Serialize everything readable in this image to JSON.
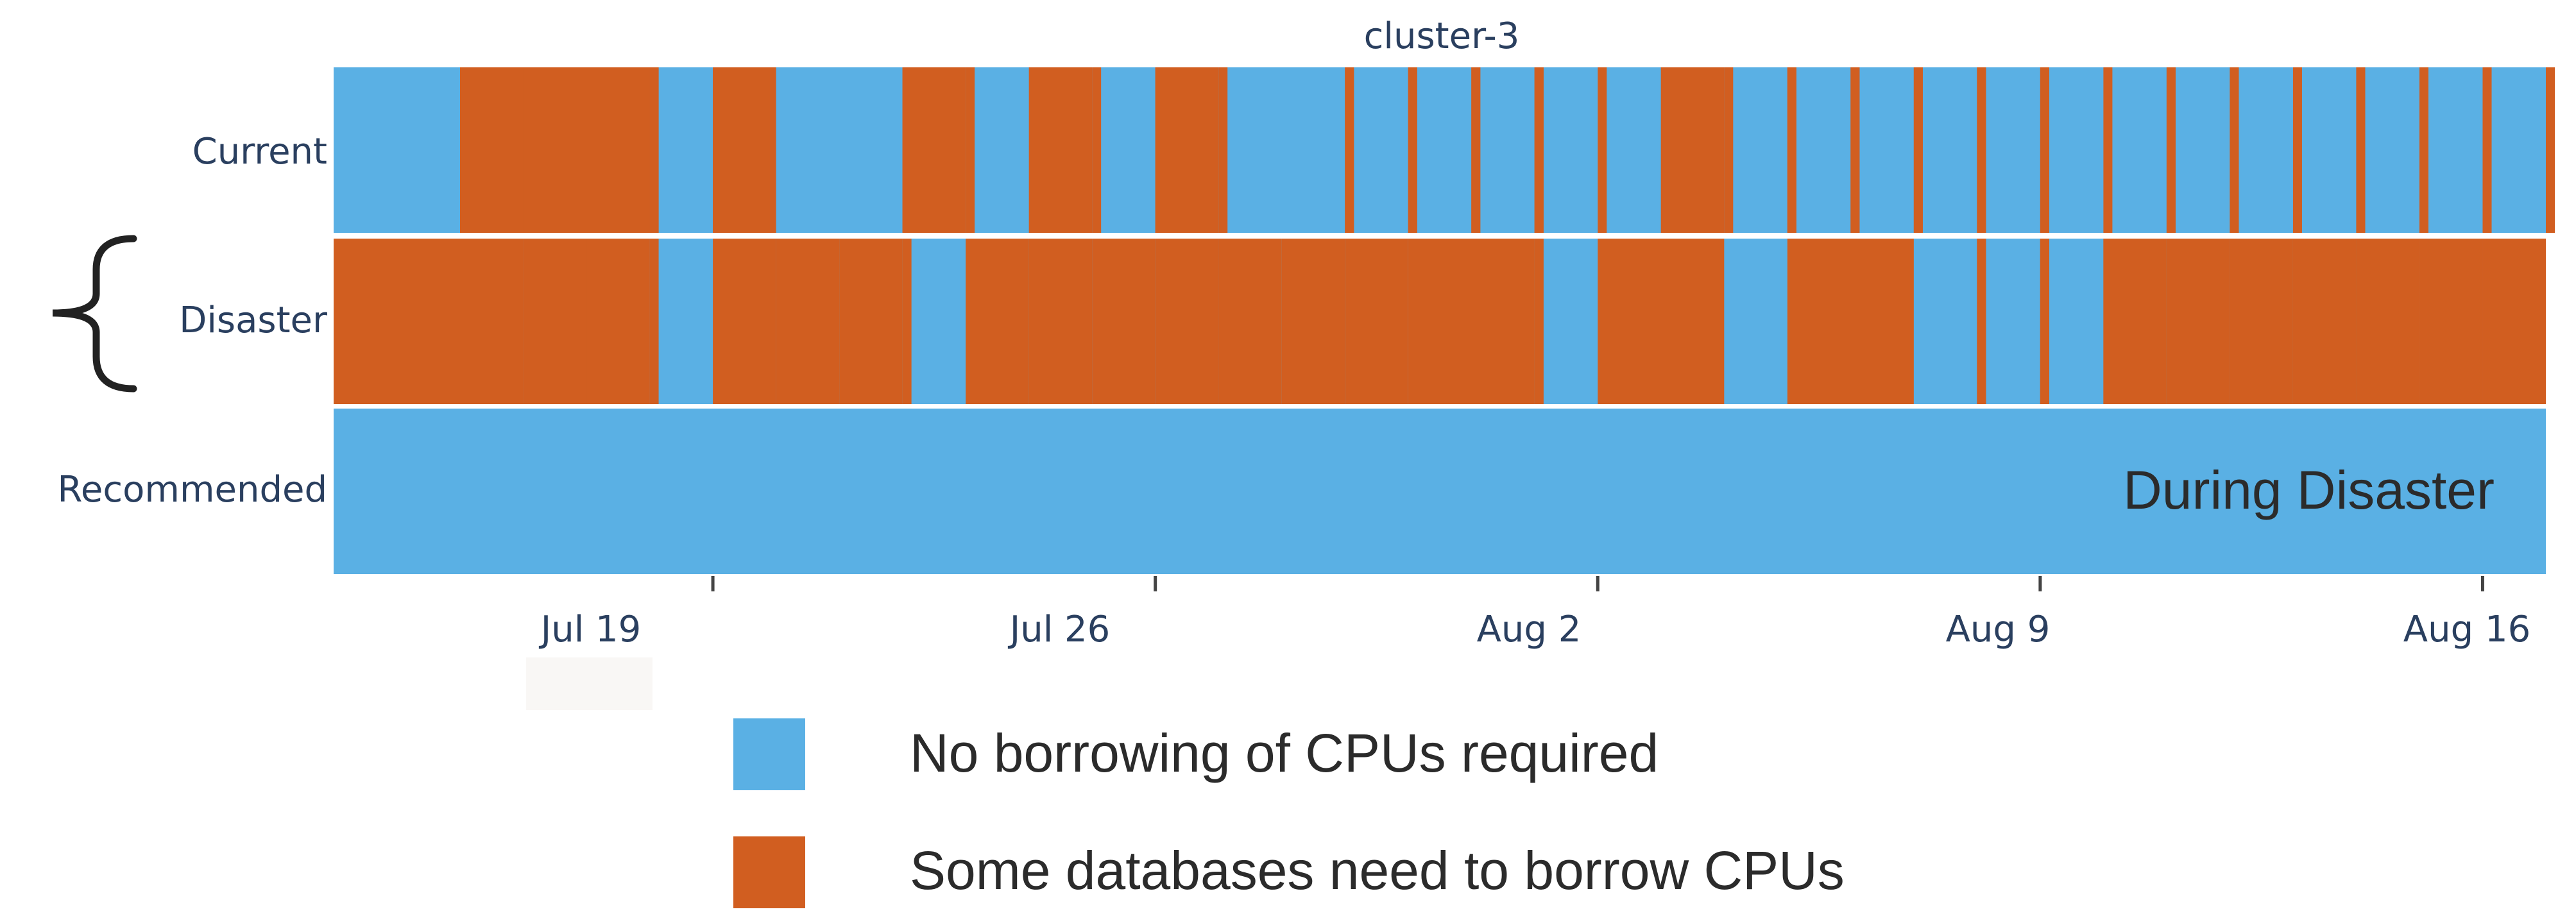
{
  "chart_data": {
    "type": "heatmap",
    "title": "cluster-3",
    "x_range": [
      "2025-07-13",
      "2025-08-17"
    ],
    "x_ticks": [
      "Jul 19",
      "Jul 26",
      "Aug 2",
      "Aug 9",
      "Aug 16"
    ],
    "rows": [
      "Current",
      "Disaster",
      "Recommended"
    ],
    "annotation": "During Disaster",
    "states": {
      "none": {
        "label": "No borrowing of CPUs required",
        "color": "#5ab0e4"
      },
      "borrow": {
        "label": "Some databases need to borrow CPUs",
        "color": "#d15e20"
      }
    },
    "borrow_intervals": {
      "Current": [
        [
          "2025-07-15",
          "2025-07-15"
        ],
        [
          "2025-07-15",
          "2025-07-16"
        ],
        [
          "2025-07-16",
          "2025-07-16"
        ],
        [
          "2025-07-16",
          "2025-07-17"
        ],
        [
          "2025-07-17",
          "2025-07-17"
        ],
        [
          "2025-07-17",
          "2025-07-17"
        ],
        [
          "2025-07-17",
          "2025-07-17"
        ],
        [
          "2025-07-17",
          "2025-07-18"
        ],
        [
          "2025-07-18",
          "2025-07-18"
        ],
        [
          "2025-07-18",
          "2025-07-18"
        ],
        [
          "2025-07-19",
          "2025-07-19"
        ],
        [
          "2025-07-19",
          "2025-07-20"
        ],
        [
          "2025-07-22",
          "2025-07-22"
        ],
        [
          "2025-07-22",
          "2025-07-23"
        ],
        [
          "2025-07-23",
          "2025-07-23"
        ],
        [
          "2025-07-24",
          "2025-07-25"
        ],
        [
          "2025-07-25",
          "2025-07-25"
        ],
        [
          "2025-07-26",
          "2025-07-26"
        ],
        [
          "2025-07-26",
          "2025-07-27"
        ],
        [
          "2025-07-27",
          "2025-07-27"
        ],
        [
          "2025-07-29",
          "2025-07-29"
        ],
        [
          "2025-07-29",
          "2025-07-29"
        ],
        [
          "2025-07-30",
          "2025-07-30"
        ],
        [
          "2025-07-30",
          "2025-07-30"
        ],
        [
          "2025-07-31",
          "2025-07-31"
        ],
        [
          "2025-07-31",
          "2025-07-31"
        ],
        [
          "2025-08-01",
          "2025-08-01"
        ],
        [
          "2025-08-01",
          "2025-08-01"
        ],
        [
          "2025-08-01",
          "2025-08-01"
        ],
        [
          "2025-08-02",
          "2025-08-02"
        ],
        [
          "2025-08-03",
          "2025-08-03"
        ],
        [
          "2025-08-03",
          "2025-08-04"
        ],
        [
          "2025-08-04",
          "2025-08-04"
        ],
        [
          "2025-08-05",
          "2025-08-05"
        ],
        [
          "2025-08-05",
          "2025-08-05"
        ],
        [
          "2025-08-06",
          "2025-08-06"
        ],
        [
          "2025-08-06",
          "2025-08-06"
        ],
        [
          "2025-08-07",
          "2025-08-07"
        ],
        [
          "2025-08-07",
          "2025-08-07"
        ],
        [
          "2025-08-08",
          "2025-08-08"
        ],
        [
          "2025-08-08",
          "2025-08-08"
        ],
        [
          "2025-08-09",
          "2025-08-09"
        ],
        [
          "2025-08-09",
          "2025-08-09"
        ],
        [
          "2025-08-10",
          "2025-08-10"
        ],
        [
          "2025-08-11",
          "2025-08-11"
        ],
        [
          "2025-08-11",
          "2025-08-11"
        ],
        [
          "2025-08-12",
          "2025-08-12"
        ],
        [
          "2025-08-12",
          "2025-08-12"
        ],
        [
          "2025-08-13",
          "2025-08-13"
        ],
        [
          "2025-08-14",
          "2025-08-14"
        ],
        [
          "2025-08-14",
          "2025-08-14"
        ],
        [
          "2025-08-15",
          "2025-08-15"
        ],
        [
          "2025-08-15",
          "2025-08-15"
        ],
        [
          "2025-08-16",
          "2025-08-16"
        ],
        [
          "2025-08-16",
          "2025-08-16"
        ],
        [
          "2025-08-17",
          "2025-08-17"
        ]
      ],
      "Disaster": [
        [
          "2025-07-13",
          "2025-07-16"
        ],
        [
          "2025-07-16",
          "2025-07-17"
        ],
        [
          "2025-07-17",
          "2025-07-17"
        ],
        [
          "2025-07-17",
          "2025-07-18"
        ],
        [
          "2025-07-18",
          "2025-07-18"
        ],
        [
          "2025-07-19",
          "2025-07-20"
        ],
        [
          "2025-07-20",
          "2025-07-21"
        ],
        [
          "2025-07-21",
          "2025-07-22"
        ],
        [
          "2025-07-22",
          "2025-07-22"
        ],
        [
          "2025-07-23",
          "2025-07-24"
        ],
        [
          "2025-07-24",
          "2025-07-25"
        ],
        [
          "2025-07-25",
          "2025-07-26"
        ],
        [
          "2025-07-26",
          "2025-07-27"
        ],
        [
          "2025-07-27",
          "2025-07-27"
        ],
        [
          "2025-07-27",
          "2025-07-28"
        ],
        [
          "2025-07-28",
          "2025-07-29"
        ],
        [
          "2025-07-29",
          "2025-07-30"
        ],
        [
          "2025-07-30",
          "2025-08-01"
        ],
        [
          "2025-08-01",
          "2025-08-01"
        ],
        [
          "2025-08-01",
          "2025-08-01"
        ],
        [
          "2025-08-02",
          "2025-08-04"
        ],
        [
          "2025-08-05",
          "2025-08-07"
        ],
        [
          "2025-08-08",
          "2025-08-08"
        ],
        [
          "2025-08-08",
          "2025-08-08"
        ],
        [
          "2025-08-09",
          "2025-08-09"
        ],
        [
          "2025-08-09",
          "2025-08-09"
        ],
        [
          "2025-08-09",
          "2025-08-09"
        ],
        [
          "2025-08-10",
          "2025-08-10"
        ],
        [
          "2025-08-10",
          "2025-08-11"
        ],
        [
          "2025-08-11",
          "2025-08-12"
        ],
        [
          "2025-08-12",
          "2025-08-13"
        ],
        [
          "2025-08-13",
          "2025-08-14"
        ],
        [
          "2025-08-14",
          "2025-08-15"
        ],
        [
          "2025-08-15",
          "2025-08-16"
        ],
        [
          "2025-08-16",
          "2025-08-16"
        ],
        [
          "2025-08-16",
          "2025-08-17"
        ]
      ],
      "Recommended": []
    }
  }
}
